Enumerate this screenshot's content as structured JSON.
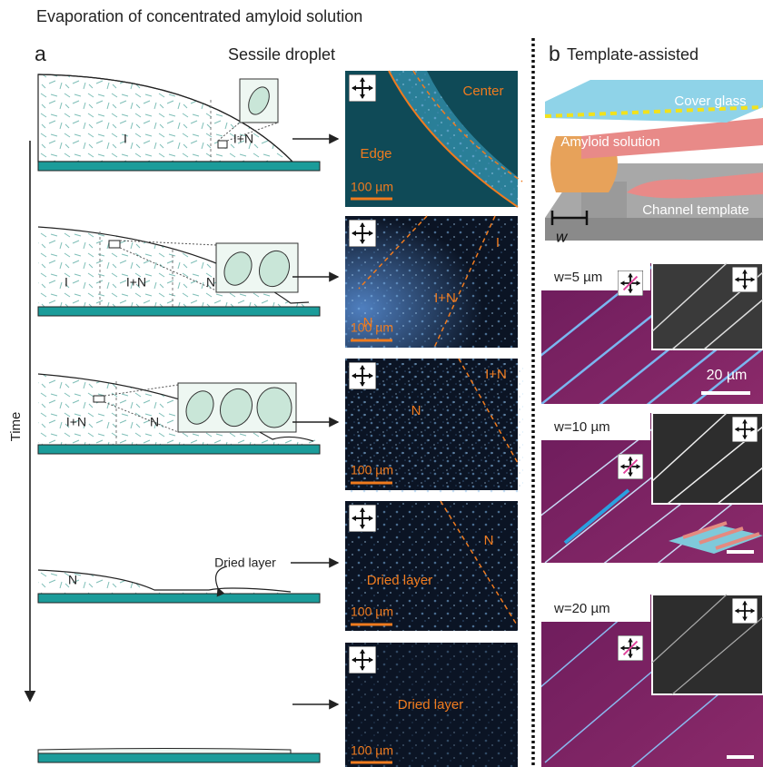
{
  "header": {
    "title": "Evaporation of concentrated amyloid solution"
  },
  "panel_a": {
    "label": "a",
    "title": "Sessile droplet",
    "time_axis": "Time",
    "rows": [
      {
        "droplet_labels": [
          "I",
          "I+N"
        ],
        "micrograph_labels": [
          "Center",
          "Edge"
        ],
        "scale_bar": "100 µm"
      },
      {
        "droplet_labels": [
          "I",
          "I+N",
          "N"
        ],
        "micrograph_labels": [
          "I",
          "I+N",
          "N"
        ],
        "scale_bar": "100 µm"
      },
      {
        "droplet_labels": [
          "I+N",
          "N"
        ],
        "micrograph_labels": [
          "I+N",
          "N"
        ],
        "scale_bar": "100 µm"
      },
      {
        "droplet_labels": [
          "N",
          "Dried layer"
        ],
        "micrograph_labels": [
          "N",
          "Dried layer"
        ],
        "scale_bar": "100 µm"
      },
      {
        "micrograph_labels": [
          "Dried layer"
        ],
        "scale_bar": "100 µm"
      }
    ]
  },
  "panel_b": {
    "label": "b",
    "title": "Template-assisted",
    "schematic_labels": [
      "Cover glass",
      "Amyloid solution",
      "Channel template",
      "w"
    ],
    "images": [
      {
        "width_label": "w=5 µm",
        "scale_bar": "20 µm"
      },
      {
        "width_label": "w=10 µm"
      },
      {
        "width_label": "w=20 µm"
      }
    ]
  }
}
